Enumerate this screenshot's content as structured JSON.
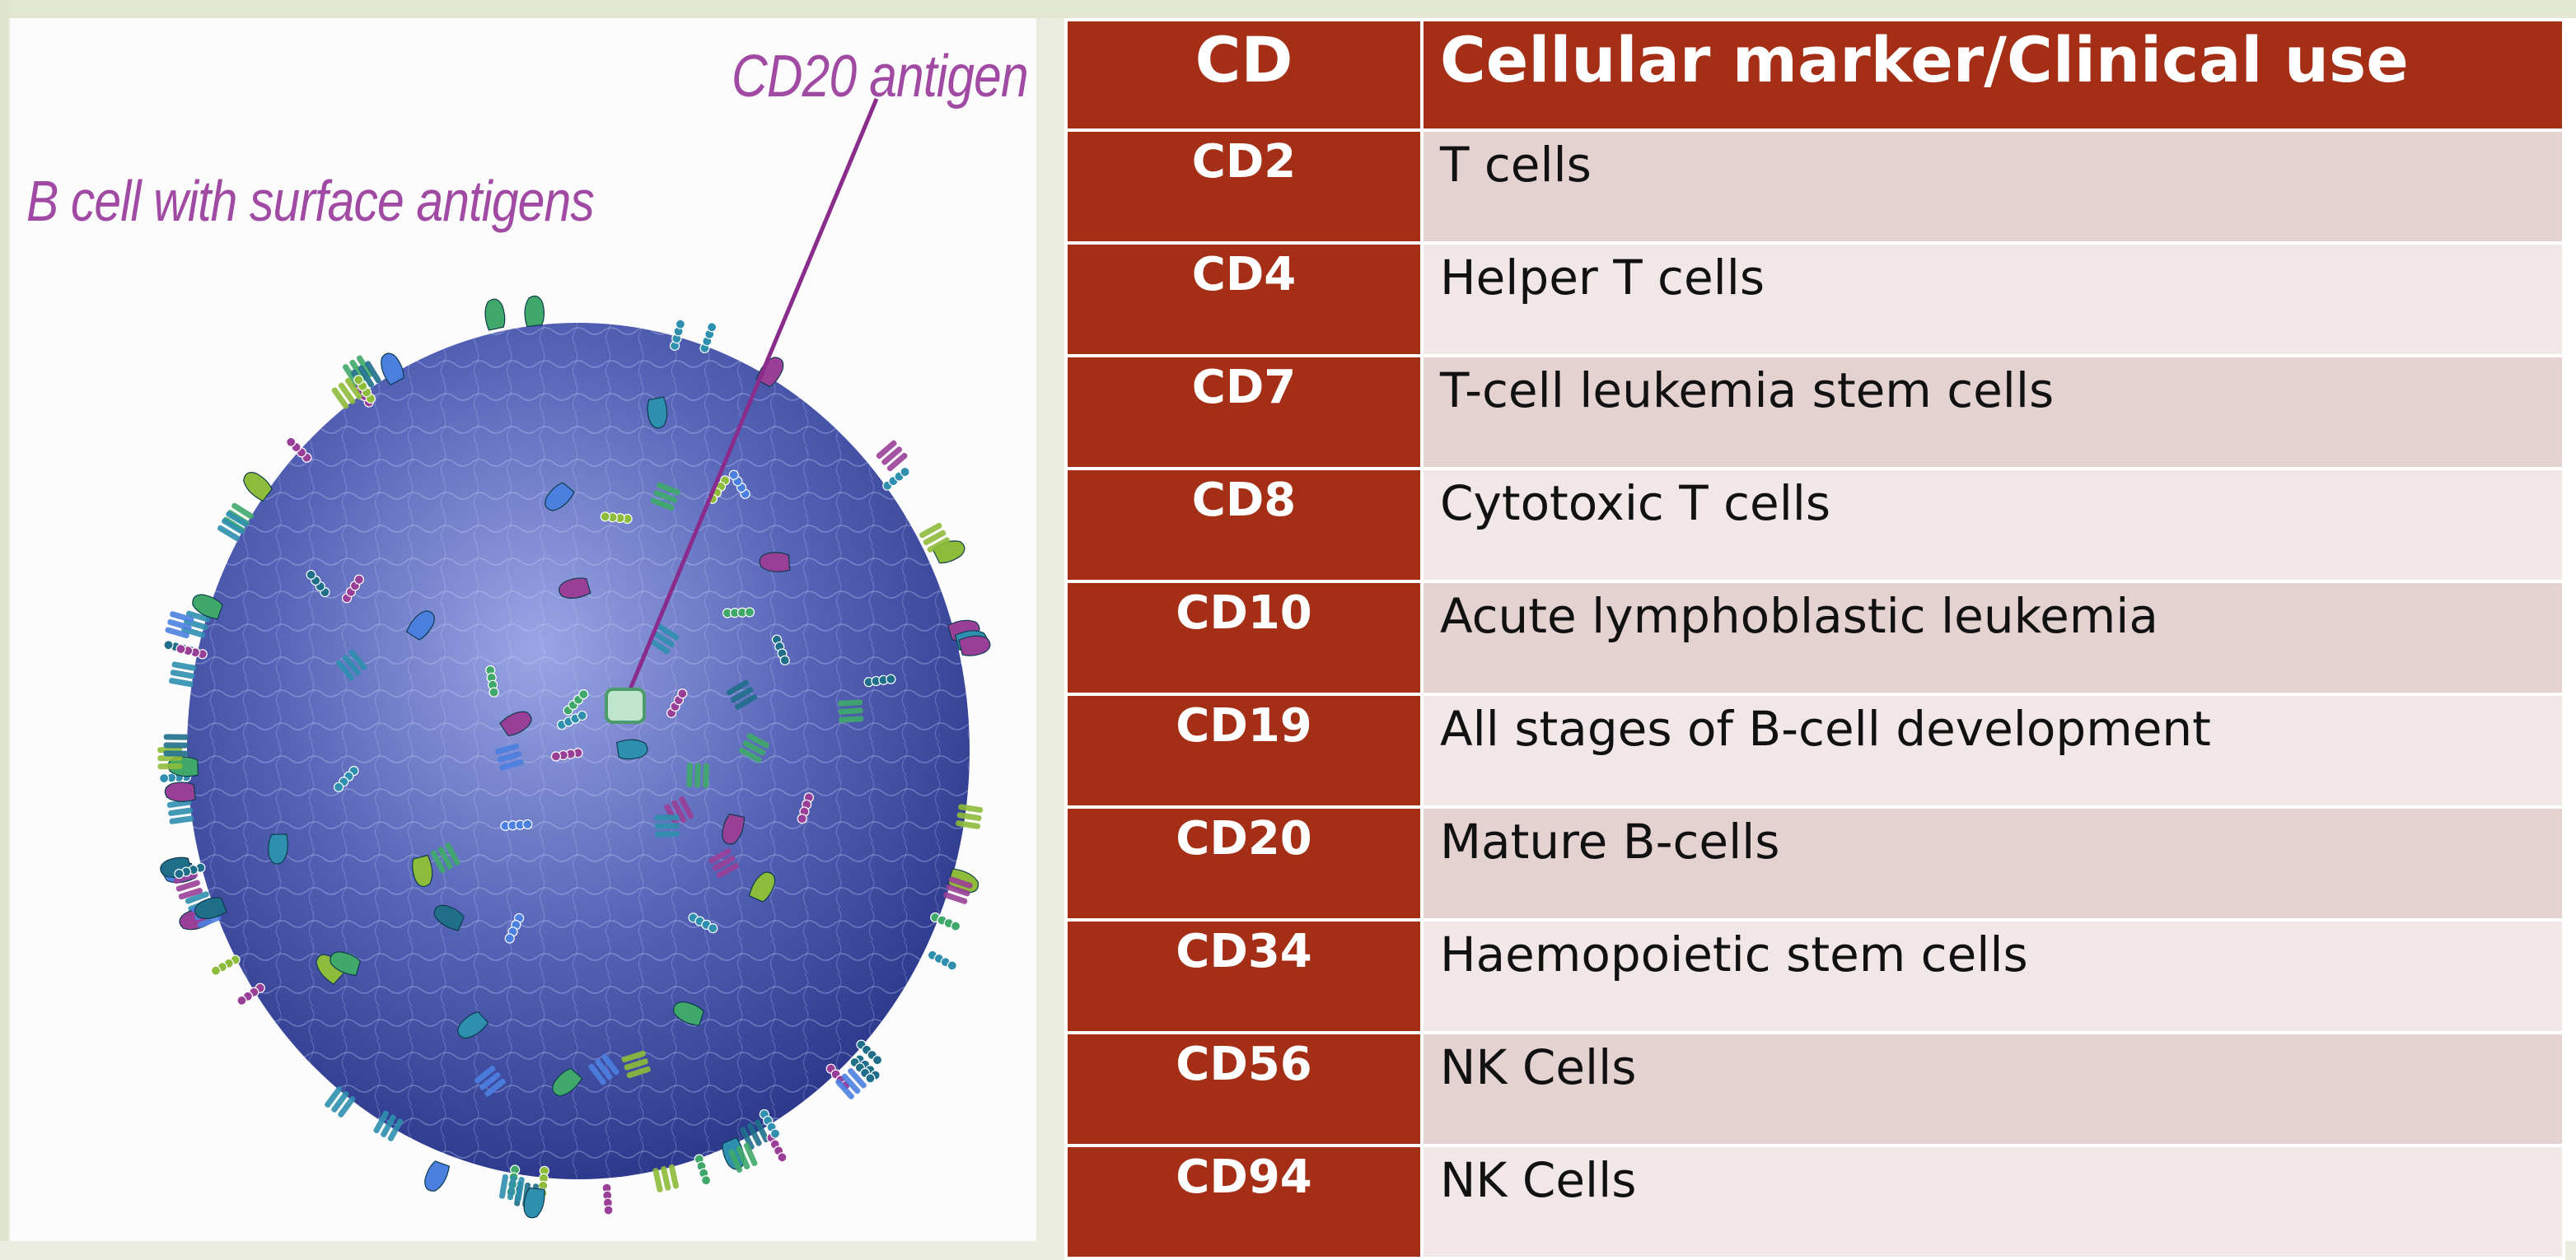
{
  "figure": {
    "labels": {
      "cell": "B cell with surface antigens",
      "antigen": "CD20 antigen"
    },
    "colors": {
      "cell_body": "#5664b8",
      "label_text": "#a14aa4",
      "pointer": "#8a2c8c"
    }
  },
  "table": {
    "headers": {
      "code": "CD",
      "use": "Cellular marker/Clinical use"
    },
    "colors": {
      "header_bg": "#a42f16",
      "row_a": "#e4d2d1",
      "row_b": "#f1e7e6"
    },
    "rows": [
      {
        "code": "CD2",
        "use": "T cells"
      },
      {
        "code": "CD4",
        "use": "Helper T cells"
      },
      {
        "code": "CD7",
        "use": "T-cell leukemia stem cells"
      },
      {
        "code": "CD8",
        "use": "Cytotoxic T cells"
      },
      {
        "code": "CD10",
        "use": "Acute lymphoblastic leukemia"
      },
      {
        "code": "CD19",
        "use": "All stages of B-cell development"
      },
      {
        "code": "CD20",
        "use": "Mature B-cells"
      },
      {
        "code": "CD34",
        "use": "Haemopoietic stem cells"
      },
      {
        "code": "CD56",
        "use": "NK Cells"
      },
      {
        "code": "CD94",
        "use": "NK Cells"
      }
    ]
  }
}
